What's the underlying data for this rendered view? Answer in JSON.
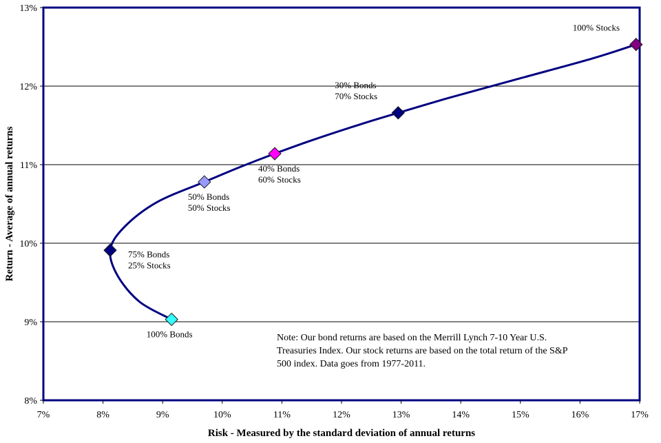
{
  "chart_data": {
    "type": "line",
    "title": "",
    "xlabel": "Risk - Measured by the standard deviation of annual returns",
    "ylabel": "Return - Average of annual returns",
    "xlim": [
      0.07,
      0.17
    ],
    "ylim": [
      0.08,
      0.13
    ],
    "x_ticks": [
      "7%",
      "8%",
      "9%",
      "10%",
      "11%",
      "12%",
      "13%",
      "14%",
      "15%",
      "16%",
      "17%"
    ],
    "y_ticks": [
      "8%",
      "9%",
      "10%",
      "11%",
      "12%",
      "13%"
    ],
    "grid": "horizontal",
    "line_color": "#000080",
    "curve": [
      [
        0.0915,
        0.0903
      ],
      [
        0.0862,
        0.0925
      ],
      [
        0.0825,
        0.0958
      ],
      [
        0.0812,
        0.0991
      ],
      [
        0.0835,
        0.102
      ],
      [
        0.089,
        0.1052
      ],
      [
        0.097,
        0.1078
      ],
      [
        0.103,
        0.1097
      ],
      [
        0.1088,
        0.1114
      ],
      [
        0.115,
        0.1131
      ],
      [
        0.123,
        0.1151
      ],
      [
        0.1295,
        0.1166
      ],
      [
        0.138,
        0.1185
      ],
      [
        0.15,
        0.121
      ],
      [
        0.162,
        0.1235
      ],
      [
        0.1694,
        0.1253
      ]
    ],
    "points": [
      {
        "x": 0.0915,
        "y": 0.0903,
        "color": "#33FFFF",
        "lines": [
          "100% Bonds"
        ],
        "pos": "below"
      },
      {
        "x": 0.0812,
        "y": 0.0991,
        "color": "#000080",
        "lines": [
          "75% Bonds",
          "25% Stocks"
        ],
        "pos": "right"
      },
      {
        "x": 0.097,
        "y": 0.1078,
        "color": "#9999FF",
        "lines": [
          "50% Bonds",
          "50% Stocks"
        ],
        "pos": "below"
      },
      {
        "x": 0.1088,
        "y": 0.1114,
        "color": "#FF00FF",
        "lines": [
          "40% Bonds",
          "60% Stocks"
        ],
        "pos": "below"
      },
      {
        "x": 0.1295,
        "y": 0.1166,
        "color": "#000080",
        "lines": [
          "30% Bonds",
          "70% Stocks"
        ],
        "pos": "above-left"
      },
      {
        "x": 0.1694,
        "y": 0.1253,
        "color": "#800080",
        "lines": [
          "100% Stocks"
        ],
        "pos": "above-left"
      }
    ],
    "note_lines": [
      "Note:  Our bond returns  are based on the Merrill  Lynch  7-10 Year U.S.",
      "Treasuries  Index.  Our stock returns are based on the total return of the S&P",
      "500 index.   Data goes from  1977-2011."
    ]
  }
}
